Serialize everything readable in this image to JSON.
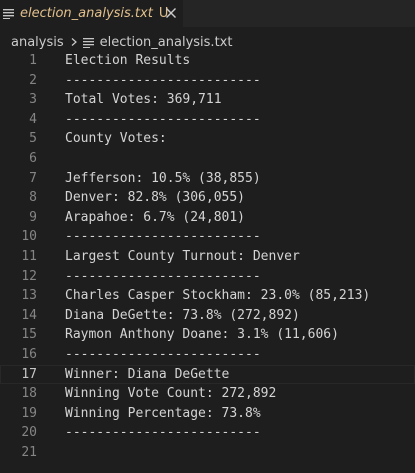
{
  "tab": {
    "filename": "election_analysis.txt",
    "status": "U",
    "file_icon": "lines-file-icon",
    "close_icon": "close-icon"
  },
  "breadcrumb": {
    "folder": "analysis",
    "file": "election_analysis.txt"
  },
  "editor": {
    "active_line": 17,
    "lines": [
      {
        "n": "1",
        "text": "Election Results"
      },
      {
        "n": "2",
        "text": "-------------------------"
      },
      {
        "n": "3",
        "text": "Total Votes: 369,711"
      },
      {
        "n": "4",
        "text": "-------------------------"
      },
      {
        "n": "5",
        "text": "County Votes:"
      },
      {
        "n": "6",
        "text": ""
      },
      {
        "n": "7",
        "text": "Jefferson: 10.5% (38,855)"
      },
      {
        "n": "8",
        "text": "Denver: 82.8% (306,055)"
      },
      {
        "n": "9",
        "text": "Arapahoe: 6.7% (24,801)"
      },
      {
        "n": "10",
        "text": "-------------------------"
      },
      {
        "n": "11",
        "text": "Largest County Turnout: Denver"
      },
      {
        "n": "12",
        "text": "-------------------------"
      },
      {
        "n": "13",
        "text": "Charles Casper Stockham: 23.0% (85,213)"
      },
      {
        "n": "14",
        "text": "Diana DeGette: 73.8% (272,892)"
      },
      {
        "n": "15",
        "text": "Raymon Anthony Doane: 3.1% (11,606)"
      },
      {
        "n": "16",
        "text": "-------------------------"
      },
      {
        "n": "17",
        "text": "Winner: Diana DeGette"
      },
      {
        "n": "18",
        "text": "Winning Vote Count: 272,892"
      },
      {
        "n": "19",
        "text": "Winning Percentage: 73.8%"
      },
      {
        "n": "20",
        "text": "-------------------------"
      },
      {
        "n": "21",
        "text": ""
      }
    ]
  },
  "colors": {
    "background": "#1e1e1e",
    "tab_modified": "#e2c08d",
    "text": "#d4d4d4",
    "line_number": "#858585"
  }
}
